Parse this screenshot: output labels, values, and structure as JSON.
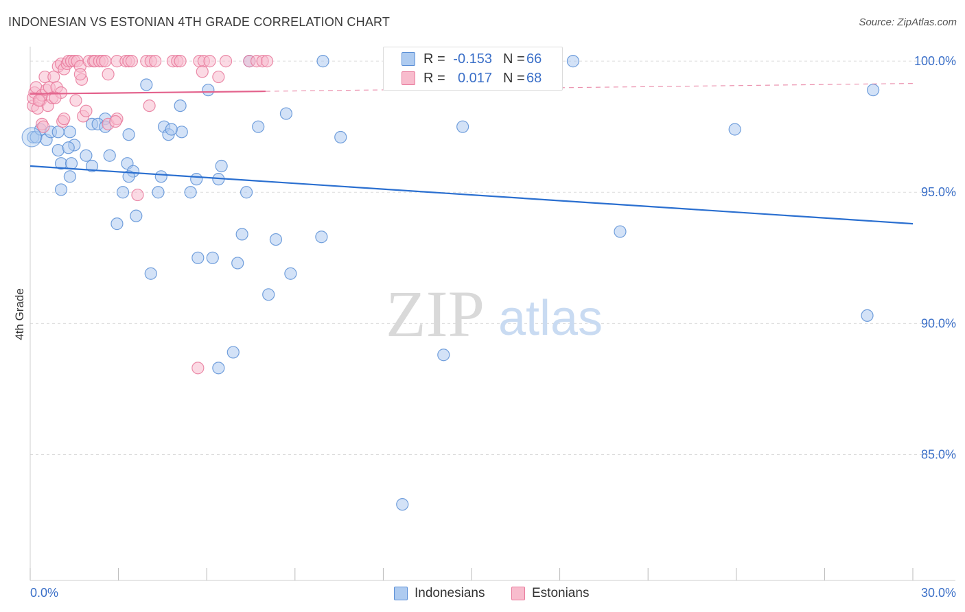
{
  "header": {
    "title": "INDONESIAN VS ESTONIAN 4TH GRADE CORRELATION CHART",
    "source": "Source: ZipAtlas.com"
  },
  "watermark": {
    "zip": "ZIP",
    "atlas": "atlas"
  },
  "legend": {
    "rows": [
      {
        "r_label": "R =",
        "r_value": "-0.153",
        "n_label": "N =",
        "n_value": "66"
      },
      {
        "r_label": "R =",
        "r_value": "0.017",
        "n_label": "N =",
        "n_value": "68"
      }
    ],
    "bottom": [
      {
        "label": "Indonesians"
      },
      {
        "label": "Estonians"
      }
    ]
  },
  "colors": {
    "blue_fill": "#aecbf0",
    "blue_stroke": "#5b8fd6",
    "blue_line": "#2a6fd0",
    "pink_fill": "#f8bccd",
    "pink_stroke": "#e8799b",
    "pink_line": "#e3628c",
    "grid": "#dcdcdc",
    "tick_text": "#3a6fc8"
  },
  "chart_data": {
    "type": "scatter",
    "title": "INDONESIAN VS ESTONIAN 4TH GRADE CORRELATION CHART",
    "xlabel": "",
    "ylabel": "4th Grade",
    "xlim": [
      0,
      30
    ],
    "ylim": [
      80.2,
      100.5
    ],
    "x_tick_labels": [
      {
        "value": 0,
        "label": "0.0%"
      },
      {
        "value": 30,
        "label": "30.0%"
      }
    ],
    "y_tick_labels": [
      {
        "value": 100,
        "label": "100.0%"
      },
      {
        "value": 95,
        "label": "95.0%"
      },
      {
        "value": 90,
        "label": "90.0%"
      },
      {
        "value": 85,
        "label": "85.0%"
      }
    ],
    "series": [
      {
        "name": "Indonesians",
        "color": "#5b8fd6",
        "points": [
          [
            0.1,
            97.1
          ],
          [
            0.2,
            97.1
          ],
          [
            0.35,
            97.4
          ],
          [
            0.55,
            97.0
          ],
          [
            0.7,
            97.3
          ],
          [
            0.95,
            97.3
          ],
          [
            1.35,
            97.3
          ],
          [
            0.95,
            96.6
          ],
          [
            1.5,
            96.8
          ],
          [
            1.3,
            96.7
          ],
          [
            2.1,
            97.6
          ],
          [
            2.55,
            97.8
          ],
          [
            2.3,
            97.6
          ],
          [
            3.35,
            97.2
          ],
          [
            4.55,
            97.5
          ],
          [
            4.7,
            97.2
          ],
          [
            5.15,
            97.3
          ],
          [
            4.8,
            97.4
          ],
          [
            1.05,
            96.1
          ],
          [
            1.4,
            96.1
          ],
          [
            2.1,
            96.0
          ],
          [
            2.7,
            96.4
          ],
          [
            3.3,
            96.1
          ],
          [
            3.5,
            95.8
          ],
          [
            4.45,
            95.6
          ],
          [
            3.35,
            95.6
          ],
          [
            5.65,
            95.5
          ],
          [
            6.5,
            96.0
          ],
          [
            6.4,
            95.5
          ],
          [
            1.9,
            96.4
          ],
          [
            1.35,
            95.6
          ],
          [
            1.05,
            95.1
          ],
          [
            3.15,
            95.0
          ],
          [
            4.35,
            95.0
          ],
          [
            5.45,
            95.0
          ],
          [
            7.35,
            95.0
          ],
          [
            3.6,
            94.1
          ],
          [
            2.95,
            93.8
          ],
          [
            7.2,
            93.4
          ],
          [
            8.35,
            93.2
          ],
          [
            9.9,
            93.3
          ],
          [
            5.7,
            92.5
          ],
          [
            6.2,
            92.5
          ],
          [
            7.05,
            92.3
          ],
          [
            4.1,
            91.9
          ],
          [
            8.85,
            91.9
          ],
          [
            8.1,
            91.1
          ],
          [
            6.9,
            88.9
          ],
          [
            6.4,
            88.3
          ],
          [
            14.05,
            88.8
          ],
          [
            12.65,
            83.1
          ],
          [
            7.45,
            100.0
          ],
          [
            9.95,
            100.0
          ],
          [
            18.45,
            100.0
          ],
          [
            3.95,
            99.1
          ],
          [
            6.05,
            98.9
          ],
          [
            5.1,
            98.3
          ],
          [
            8.7,
            98.0
          ],
          [
            7.75,
            97.5
          ],
          [
            10.55,
            97.1
          ],
          [
            14.7,
            97.5
          ],
          [
            23.95,
            97.4
          ],
          [
            20.05,
            93.5
          ],
          [
            28.65,
            98.9
          ],
          [
            28.45,
            90.3
          ],
          [
            2.55,
            97.5
          ]
        ]
      },
      {
        "name": "Estonians",
        "color": "#e8799b",
        "points": [
          [
            0.1,
            98.3
          ],
          [
            0.1,
            98.6
          ],
          [
            0.15,
            98.8
          ],
          [
            0.2,
            99.0
          ],
          [
            0.25,
            98.2
          ],
          [
            0.35,
            98.5
          ],
          [
            0.4,
            98.7
          ],
          [
            0.5,
            99.4
          ],
          [
            0.55,
            98.9
          ],
          [
            0.6,
            98.3
          ],
          [
            0.65,
            99.0
          ],
          [
            0.75,
            98.6
          ],
          [
            0.8,
            99.4
          ],
          [
            0.9,
            99.0
          ],
          [
            0.95,
            99.8
          ],
          [
            1.05,
            99.9
          ],
          [
            1.05,
            98.8
          ],
          [
            1.15,
            99.7
          ],
          [
            1.25,
            99.9
          ],
          [
            1.3,
            100.0
          ],
          [
            1.4,
            100.0
          ],
          [
            1.5,
            100.0
          ],
          [
            1.6,
            100.0
          ],
          [
            1.7,
            99.8
          ],
          [
            1.75,
            99.3
          ],
          [
            2.0,
            100.0
          ],
          [
            2.15,
            100.0
          ],
          [
            2.2,
            100.0
          ],
          [
            2.35,
            100.0
          ],
          [
            2.45,
            100.0
          ],
          [
            2.55,
            100.0
          ],
          [
            2.65,
            99.5
          ],
          [
            2.95,
            100.0
          ],
          [
            3.25,
            100.0
          ],
          [
            3.35,
            100.0
          ],
          [
            3.45,
            100.0
          ],
          [
            3.95,
            100.0
          ],
          [
            4.1,
            100.0
          ],
          [
            4.25,
            100.0
          ],
          [
            4.85,
            100.0
          ],
          [
            5.0,
            100.0
          ],
          [
            5.1,
            100.0
          ],
          [
            5.75,
            100.0
          ],
          [
            5.9,
            100.0
          ],
          [
            5.85,
            99.6
          ],
          [
            6.1,
            100.0
          ],
          [
            6.65,
            100.0
          ],
          [
            6.4,
            99.4
          ],
          [
            7.45,
            100.0
          ],
          [
            7.7,
            100.0
          ],
          [
            7.9,
            100.0
          ],
          [
            8.05,
            100.0
          ],
          [
            0.4,
            97.6
          ],
          [
            0.45,
            97.5
          ],
          [
            1.1,
            97.7
          ],
          [
            1.15,
            97.8
          ],
          [
            1.8,
            97.9
          ],
          [
            1.9,
            98.1
          ],
          [
            2.65,
            97.6
          ],
          [
            2.95,
            97.8
          ],
          [
            2.9,
            97.7
          ],
          [
            3.65,
            94.9
          ],
          [
            5.7,
            88.3
          ],
          [
            1.7,
            99.5
          ],
          [
            1.55,
            98.5
          ],
          [
            4.05,
            98.3
          ],
          [
            0.3,
            98.5
          ],
          [
            0.85,
            98.6
          ]
        ]
      }
    ],
    "trend_lines": [
      {
        "series": "Indonesians",
        "from": [
          0,
          96.0
        ],
        "to": [
          30,
          93.8
        ],
        "style": "solid"
      },
      {
        "series": "Estonians",
        "from": [
          0,
          98.75
        ],
        "to": [
          8.0,
          98.85
        ],
        "style": "solid"
      },
      {
        "series": "Estonians",
        "from": [
          8.0,
          98.85
        ],
        "to": [
          30,
          99.15
        ],
        "style": "dashed"
      }
    ]
  }
}
